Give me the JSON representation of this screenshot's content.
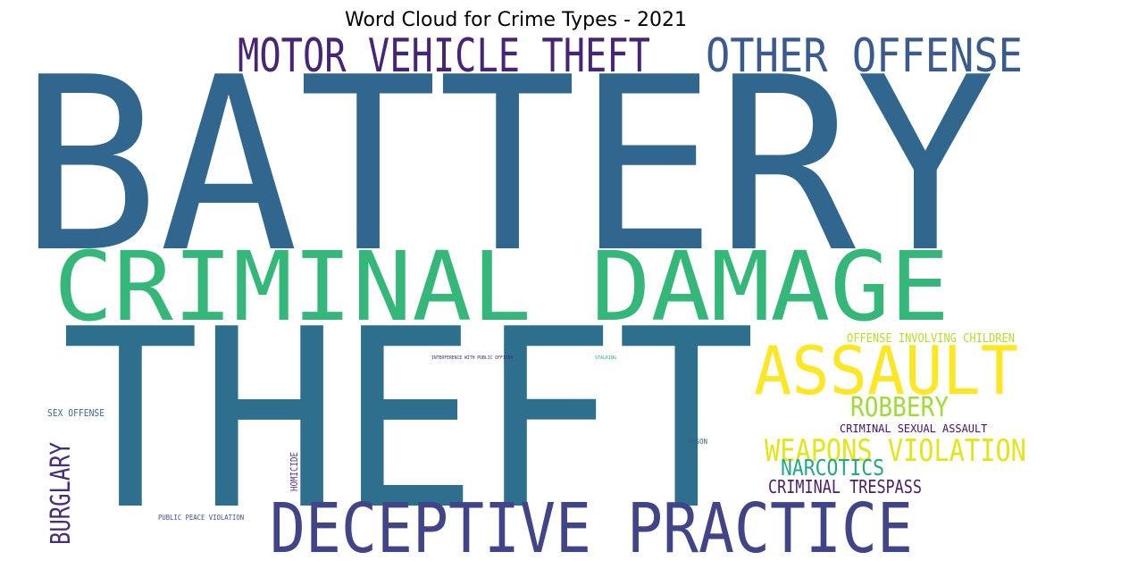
{
  "chart_data": {
    "type": "wordcloud",
    "title": "Word Cloud for Crime Types - 2021",
    "words": [
      {
        "text": "BATTERY",
        "color": "#31678e"
      },
      {
        "text": "THEFT",
        "color": "#2f6f8e"
      },
      {
        "text": "CRIMINAL DAMAGE",
        "color": "#35b779"
      },
      {
        "text": "MOTOR VEHICLE THEFT",
        "color": "#482475"
      },
      {
        "text": "OTHER OFFENSE",
        "color": "#3b5b8e"
      },
      {
        "text": "DECEPTIVE PRACTICE",
        "color": "#414487"
      },
      {
        "text": "ASSAULT",
        "color": "#fde725"
      },
      {
        "text": "ROBBERY",
        "color": "#a0da39"
      },
      {
        "text": "WEAPONS VIOLATION",
        "color": "#e5e419"
      },
      {
        "text": "BURGLARY",
        "color": "#472d7b"
      },
      {
        "text": "NARCOTICS",
        "color": "#22a884"
      },
      {
        "text": "CRIMINAL TRESPASS",
        "color": "#481f70"
      },
      {
        "text": "OFFENSE INVOLVING CHILDREN",
        "color": "#b5de2b"
      },
      {
        "text": "CRIMINAL SEXUAL ASSAULT",
        "color": "#471063"
      },
      {
        "text": "SEX OFFENSE",
        "color": "#3e6a8e"
      },
      {
        "text": "HOMICIDE",
        "color": "#5c3a8c"
      },
      {
        "text": "PUBLIC PEACE VIOLATION",
        "color": "#3a538b"
      },
      {
        "text": "ARSON",
        "color": "#33638d"
      },
      {
        "text": "INTERFERENCE WITH PUBLIC OFFICER",
        "color": "#482677"
      },
      {
        "text": "STALKING",
        "color": "#2ab07f"
      }
    ]
  }
}
